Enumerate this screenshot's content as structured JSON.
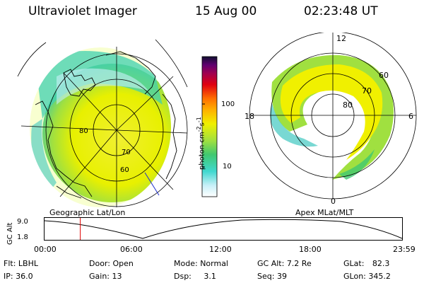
{
  "header": {
    "instrument": "Ultraviolet Imager",
    "date": "15 Aug 00",
    "time": "02:23:48 UT"
  },
  "geo_panel": {
    "label": "Geographic Lat/Lon",
    "lat_labels": [
      "60",
      "70",
      "80"
    ]
  },
  "mag_panel": {
    "label": "Apex MLat/MLT",
    "mlt_labels": {
      "top": "12",
      "left": "18",
      "right": "6",
      "bottom": "0"
    },
    "mlat_labels": [
      "60",
      "70",
      "80"
    ]
  },
  "colorbar": {
    "unit_text": "photon cm",
    "exp1": "-2",
    "mid": "s",
    "exp2": "-1",
    "ticks": [
      "100",
      "10"
    ],
    "colors": [
      "#ffffff",
      "#c8f0f8",
      "#40d8d0",
      "#40c870",
      "#a0e040",
      "#f0f000",
      "#ffb000",
      "#ff7000",
      "#e00010",
      "#a00050",
      "#600070",
      "#101030"
    ]
  },
  "altitude_plot": {
    "ylabel": "GC Alt",
    "ymax": "9.0",
    "ymin": "1.8",
    "xticks": [
      "00:00",
      "06:00",
      "12:00",
      "18:00",
      "23:59"
    ],
    "marker_hour": 2.4
  },
  "params": {
    "filter_label": "Flt:",
    "filter": "LBHL",
    "ip_label": "IP:",
    "ip": "36.0",
    "door_label": "Door:",
    "door": "Open",
    "gain_label": "Gain:",
    "gain": "13",
    "mode_label": "Mode:",
    "mode": "Normal",
    "dsp_label": "Dsp:",
    "dsp": "3.1",
    "gcalt_label": "GC Alt:",
    "gcalt": "7.2 Re",
    "seq_label": "Seq:",
    "seq": "39",
    "glat_label": "GLat:",
    "glat": "82.3",
    "glon_label": "GLon:",
    "glon": "345.2"
  }
}
